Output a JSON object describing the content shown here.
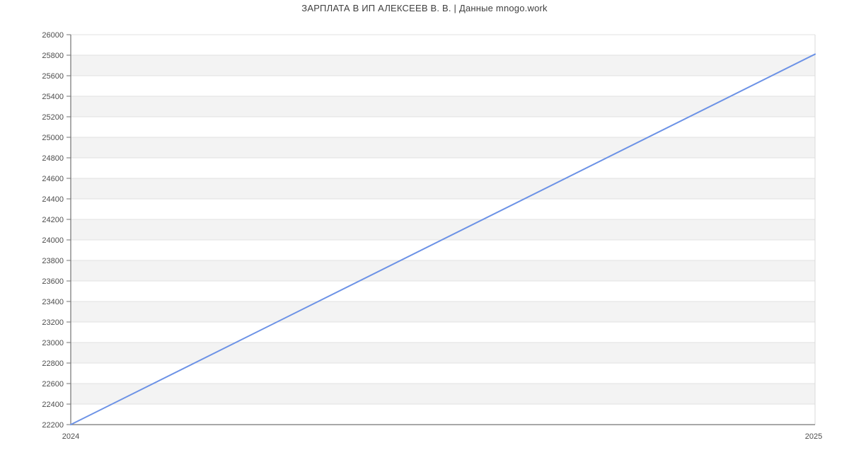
{
  "chart": {
    "title": "ЗАРПЛАТА В ИП АЛЕКСЕЕВ В. В. | Данные mnogo.work"
  },
  "chart_data": {
    "type": "line",
    "title": "ЗАРПЛАТА В ИП АЛЕКСЕЕВ В. В. | Данные mnogo.work",
    "x": [
      2024,
      2025
    ],
    "x_tick_labels": [
      "2024",
      "2025"
    ],
    "series": [
      {
        "name": "ЗАРПЛАТА",
        "values": [
          22200,
          25810
        ],
        "color": "#6c92e6"
      }
    ],
    "ylim": [
      22200,
      26000
    ],
    "y_tick_step": 200,
    "y_ticks": [
      22200,
      22400,
      22600,
      22800,
      23000,
      23200,
      23400,
      23600,
      23800,
      24000,
      24200,
      24400,
      24600,
      24800,
      25000,
      25200,
      25400,
      25600,
      25800,
      26000
    ],
    "xlabel": "",
    "ylabel": "",
    "grid": true,
    "background_bands": true,
    "legend_position": "none",
    "colors": {
      "line": "#6c92e6",
      "band_fill": "#f3f3f3",
      "grid_line": "#e2e2e2",
      "axis_line": "#737373",
      "plot_border": "#d9d9d9",
      "tick_label": "#4d4d4d",
      "title_text": "#3f3f3f",
      "background": "#ffffff"
    }
  }
}
